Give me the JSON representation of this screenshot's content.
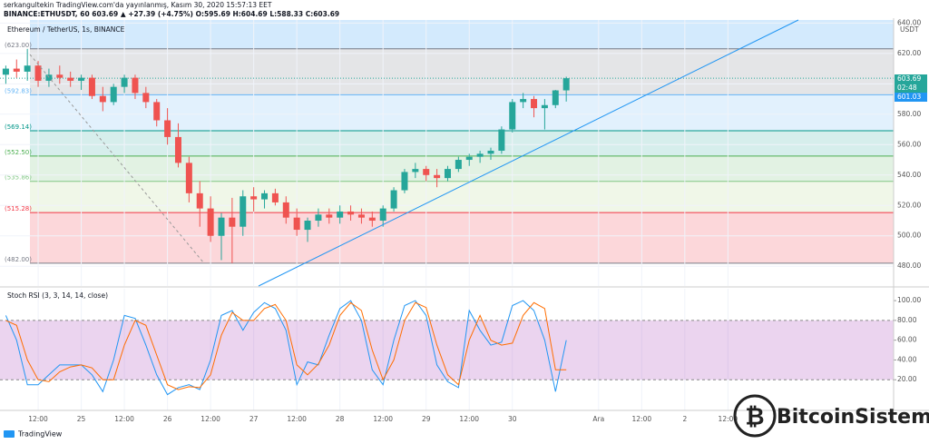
{
  "header": {
    "line1": "serkangultekin TradingView.com'da yayınlanmış, Kasım 30, 2020 15:57:13 EET",
    "line2": "BINANCE:ETHUSDT, 60  603.69 ▲ +27.39 (+4.75%) O:595.69 H:604.69 L:588.33 C:603.69"
  },
  "price_tags": {
    "last": "603.69",
    "countdown": "02:48",
    "line": "601.03",
    "unit": "USDT"
  },
  "footer": "TradingView",
  "watermark": "BitcoinSistemi",
  "chart_data": [
    {
      "type": "candlestick",
      "title": "Ethereum / TetherUS, 1s, BINANCE",
      "up_color": "#26a69a",
      "down_color": "#ef5350",
      "open": [
        606,
        610,
        608,
        612,
        602,
        606,
        604,
        602,
        604,
        592,
        588,
        598,
        604,
        594,
        588,
        576,
        565,
        548,
        528,
        518,
        500,
        512,
        506,
        526,
        524,
        528,
        522,
        512,
        504,
        510,
        514,
        512,
        516,
        514,
        512,
        510,
        518,
        530,
        542,
        544,
        540,
        538,
        544,
        550,
        552,
        554,
        556,
        570,
        588,
        590,
        584,
        586,
        595.69
      ],
      "high": [
        612,
        616,
        623,
        615,
        610,
        612,
        608,
        606,
        606,
        598,
        600,
        606,
        606,
        598,
        590,
        584,
        574,
        552,
        536,
        526,
        515,
        525,
        530,
        532,
        530,
        531,
        526,
        518,
        512,
        518,
        518,
        520,
        520,
        518,
        516,
        520,
        532,
        544,
        548,
        546,
        544,
        546,
        552,
        554,
        556,
        558,
        572,
        590,
        594,
        592,
        590,
        596,
        604.69
      ],
      "low": [
        600,
        604,
        602,
        598,
        598,
        600,
        598,
        596,
        590,
        582,
        586,
        594,
        590,
        584,
        572,
        560,
        545,
        522,
        506,
        496,
        484,
        482,
        500,
        516,
        518,
        520,
        508,
        500,
        496,
        506,
        508,
        508,
        510,
        508,
        506,
        506,
        516,
        528,
        538,
        536,
        532,
        536,
        542,
        546,
        548,
        550,
        554,
        568,
        584,
        578,
        570,
        584,
        588.33
      ],
      "close": [
        610,
        608,
        612,
        602,
        606,
        604,
        602,
        604,
        592,
        588,
        598,
        604,
        594,
        588,
        576,
        565,
        548,
        528,
        518,
        500,
        512,
        506,
        526,
        524,
        528,
        522,
        512,
        504,
        510,
        514,
        512,
        516,
        514,
        512,
        510,
        518,
        530,
        542,
        544,
        540,
        538,
        544,
        550,
        552,
        554,
        556,
        570,
        588,
        590,
        584,
        586,
        595.69,
        603.69
      ],
      "ylim": [
        467,
        642
      ],
      "yticks": [
        {
          "value": 480,
          "label": "480.00"
        },
        {
          "value": 500,
          "label": "500.00"
        },
        {
          "value": 520,
          "label": "520.00"
        },
        {
          "value": 540,
          "label": "540.00"
        },
        {
          "value": 560,
          "label": "560.00"
        },
        {
          "value": 580,
          "label": "580.00"
        },
        {
          "value": 600,
          "label": "600.00"
        },
        {
          "value": 620,
          "label": "620.00"
        },
        {
          "value": 640,
          "label": "640.00"
        }
      ],
      "xticks": [
        {
          "value": 3,
          "label": "12:00"
        },
        {
          "value": 7,
          "label": "25"
        },
        {
          "value": 11,
          "label": "12:00"
        },
        {
          "value": 15,
          "label": "26"
        },
        {
          "value": 19,
          "label": "12:00"
        },
        {
          "value": 23,
          "label": "27"
        },
        {
          "value": 27,
          "label": "12:00"
        },
        {
          "value": 31,
          "label": "28"
        },
        {
          "value": 35,
          "label": "12:00"
        },
        {
          "value": 39,
          "label": "29"
        },
        {
          "value": 43,
          "label": "12:00"
        },
        {
          "value": 47,
          "label": "30"
        },
        {
          "value": 55,
          "label": "Ara"
        },
        {
          "value": 59,
          "label": "12:00"
        },
        {
          "value": 63,
          "label": "2"
        },
        {
          "value": 67,
          "label": "12:00"
        }
      ],
      "top_band_color": "rgba(33,150,243,0.2)",
      "levels": [
        {
          "value": 623,
          "label": "(623.00)",
          "color": "#787b86",
          "band": "rgba(120,123,134,0.2)"
        },
        {
          "value": 592.83,
          "label": "(592.83)",
          "color": "#64b5f6",
          "band": "rgba(33,150,243,0.13)"
        },
        {
          "value": 569.14,
          "label": "(569.14)",
          "color": "#009688",
          "band": "rgba(0,150,136,0.16)"
        },
        {
          "value": 552.5,
          "label": "(552.50)",
          "color": "#4caf50",
          "band": "rgba(76,175,80,0.16)"
        },
        {
          "value": 535.86,
          "label": "(535.86)",
          "color": "#81c784",
          "band": "rgba(139,195,74,0.13)"
        },
        {
          "value": 515.28,
          "label": "(515.28)",
          "color": "#f23645",
          "band": "rgba(242,54,69,0.2)"
        },
        {
          "value": 482,
          "label": "(482.00)",
          "color": "#787b86"
        }
      ]
    },
    {
      "type": "line",
      "title": "Stoch RSI (3, 3, 14, 14, close)",
      "band": [
        20,
        80
      ],
      "band_color": "rgba(156,39,176,0.2)",
      "series": [
        {
          "color": "#2196f3",
          "values": [
            85,
            60,
            15,
            15,
            25,
            35,
            35,
            35,
            25,
            8,
            40,
            85,
            82,
            55,
            25,
            5,
            12,
            15,
            10,
            40,
            85,
            90,
            70,
            88,
            98,
            92,
            70,
            15,
            38,
            35,
            65,
            92,
            100,
            80,
            30,
            15,
            60,
            95,
            100,
            85,
            35,
            18,
            12,
            90,
            70,
            55,
            58,
            95,
            100,
            90,
            60,
            8,
            60
          ]
        },
        {
          "color": "#ff6d00",
          "values": [
            80,
            75,
            40,
            20,
            18,
            28,
            33,
            35,
            32,
            20,
            20,
            55,
            80,
            75,
            45,
            15,
            10,
            13,
            12,
            25,
            65,
            88,
            80,
            80,
            92,
            96,
            80,
            35,
            25,
            36,
            55,
            85,
            98,
            90,
            50,
            20,
            40,
            80,
            98,
            93,
            55,
            25,
            15,
            60,
            85,
            60,
            55,
            57,
            85,
            98,
            92,
            30,
            30
          ]
        }
      ],
      "ylim": [
        -11,
        112
      ],
      "yticks": [
        {
          "value": 20,
          "label": "20.00"
        },
        {
          "value": 40,
          "label": "40.00"
        },
        {
          "value": 60,
          "label": "60.00"
        },
        {
          "value": 80,
          "label": "80.00"
        },
        {
          "value": 100,
          "label": "100.00"
        }
      ]
    }
  ]
}
